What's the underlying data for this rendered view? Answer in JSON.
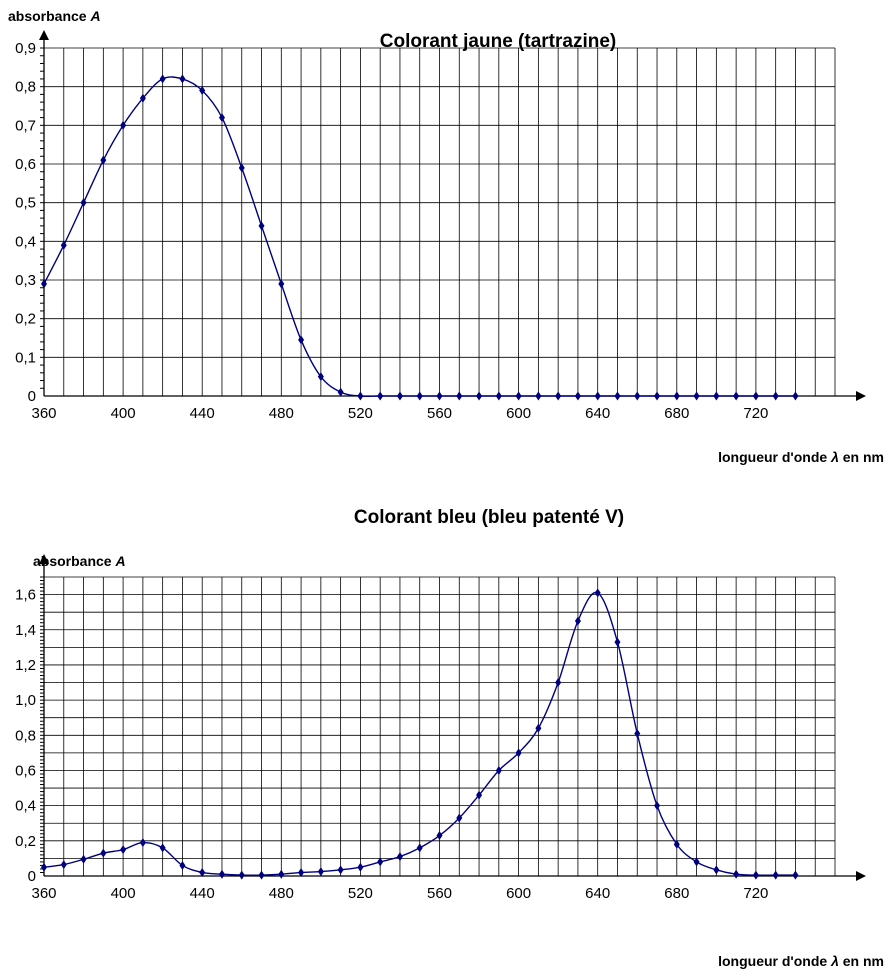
{
  "colors": {
    "curve": "#00007f",
    "axis": "#000000",
    "grid": "#000000",
    "background": "#ffffff"
  },
  "chart_data": [
    {
      "type": "line",
      "title": "Colorant jaune (tartrazine)",
      "xlabel": "longueur d'onde λ en nm",
      "ylabel": "absorbance A",
      "xlim": [
        360,
        760
      ],
      "ylim": [
        0,
        0.9
      ],
      "x_major_step": 40,
      "x_grid_step": 10,
      "y_grid_step": 0.1,
      "x_ticks": [
        "360",
        "400",
        "440",
        "480",
        "520",
        "560",
        "600",
        "640",
        "680",
        "720"
      ],
      "y_ticks": [
        "0",
        "0,1",
        "0,2",
        "0,3",
        "0,4",
        "0,5",
        "0,6",
        "0,7",
        "0,8",
        "0,9"
      ],
      "grid": true,
      "series": [
        {
          "x": [
            360,
            370,
            380,
            390,
            400,
            410,
            420,
            430,
            440,
            450,
            460,
            470,
            480,
            490,
            500,
            510,
            520,
            530,
            540,
            550,
            560,
            570,
            580,
            590,
            600,
            610,
            620,
            630,
            640,
            650,
            660,
            670,
            680,
            690,
            700,
            710,
            720,
            730,
            740
          ],
          "y": [
            0.29,
            0.39,
            0.5,
            0.61,
            0.7,
            0.77,
            0.82,
            0.82,
            0.79,
            0.72,
            0.59,
            0.44,
            0.29,
            0.145,
            0.05,
            0.01,
            0,
            0,
            0,
            0,
            0,
            0,
            0,
            0,
            0,
            0,
            0,
            0,
            0,
            0,
            0,
            0,
            0,
            0,
            0,
            0,
            0,
            0,
            0
          ]
        }
      ]
    },
    {
      "type": "line",
      "title": "Colorant bleu (bleu patenté V)",
      "xlabel": "longueur d'onde λ en nm",
      "ylabel": "absorbance A",
      "xlim": [
        360,
        760
      ],
      "ylim": [
        0,
        1.7
      ],
      "x_major_step": 40,
      "x_grid_step": 10,
      "y_grid_step": 0.1,
      "x_ticks": [
        "360",
        "400",
        "440",
        "480",
        "520",
        "560",
        "600",
        "640",
        "680",
        "720"
      ],
      "y_ticks": [
        "0",
        "0,2",
        "0,4",
        "0,6",
        "0,8",
        "1,0",
        "1,2",
        "1,4",
        "1,6"
      ],
      "grid": true,
      "series": [
        {
          "x": [
            360,
            370,
            380,
            390,
            400,
            410,
            420,
            430,
            440,
            450,
            460,
            470,
            480,
            490,
            500,
            510,
            520,
            530,
            540,
            550,
            560,
            570,
            580,
            590,
            600,
            610,
            620,
            630,
            640,
            650,
            660,
            670,
            680,
            690,
            700,
            710,
            720,
            730,
            740
          ],
          "y": [
            0.05,
            0.065,
            0.095,
            0.13,
            0.15,
            0.19,
            0.16,
            0.06,
            0.02,
            0.01,
            0.005,
            0.005,
            0.01,
            0.02,
            0.025,
            0.035,
            0.05,
            0.08,
            0.11,
            0.16,
            0.23,
            0.33,
            0.46,
            0.6,
            0.7,
            0.84,
            1.1,
            1.45,
            1.61,
            1.33,
            0.81,
            0.4,
            0.18,
            0.08,
            0.035,
            0.01,
            0.005,
            0.005,
            0.005
          ]
        }
      ]
    }
  ]
}
